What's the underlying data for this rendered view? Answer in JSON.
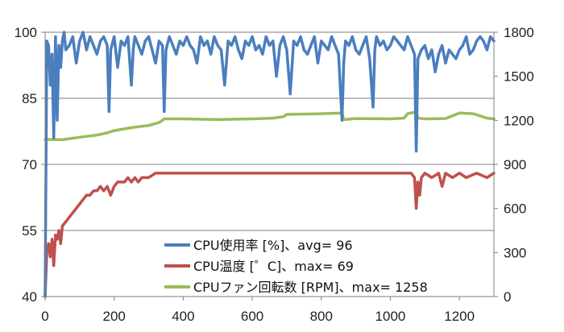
{
  "colors": {
    "cpu_usage": "#4a7ebf",
    "cpu_temp": "#c0504d",
    "fan_rpm": "#9bbb59",
    "grid": "#7f7f7f",
    "axis": "#7f7f7f"
  },
  "chart_data": {
    "type": "line",
    "title": "",
    "xlabel": "",
    "ylabel": "",
    "y2label": "",
    "xlim": [
      0,
      1300
    ],
    "ylim": [
      40,
      100
    ],
    "y2lim": [
      0,
      1800
    ],
    "x_ticks": [
      "0",
      "200",
      "400",
      "600",
      "800",
      "1000",
      "1200"
    ],
    "y_ticks": [
      "40",
      "55",
      "70",
      "85",
      "100"
    ],
    "y2_ticks": [
      "0",
      "300",
      "600",
      "900",
      "1200",
      "1500",
      "1800"
    ],
    "grid": "horizontal",
    "legend_position": "bottom-center",
    "series": [
      {
        "name": "CPU使用率 [%]、avg= 96",
        "axis": "left",
        "x": [
          0,
          5,
          10,
          15,
          20,
          25,
          30,
          35,
          40,
          45,
          50,
          55,
          60,
          70,
          80,
          90,
          100,
          110,
          120,
          130,
          140,
          150,
          160,
          170,
          180,
          185,
          190,
          200,
          210,
          220,
          230,
          240,
          250,
          255,
          260,
          270,
          280,
          290,
          300,
          310,
          320,
          330,
          340,
          345,
          350,
          360,
          370,
          380,
          390,
          400,
          410,
          420,
          430,
          440,
          450,
          460,
          470,
          480,
          490,
          500,
          510,
          520,
          530,
          540,
          550,
          560,
          570,
          580,
          590,
          600,
          610,
          620,
          630,
          640,
          650,
          660,
          670,
          680,
          690,
          700,
          710,
          720,
          730,
          740,
          750,
          760,
          770,
          780,
          790,
          800,
          810,
          820,
          830,
          840,
          850,
          860,
          865,
          870,
          880,
          890,
          900,
          910,
          920,
          930,
          940,
          950,
          955,
          960,
          970,
          980,
          990,
          1000,
          1010,
          1020,
          1030,
          1040,
          1050,
          1060,
          1070,
          1075,
          1080,
          1090,
          1100,
          1110,
          1120,
          1130,
          1140,
          1150,
          1160,
          1170,
          1180,
          1190,
          1200,
          1210,
          1220,
          1230,
          1240,
          1250,
          1260,
          1270,
          1280,
          1290,
          1300
        ],
        "y": [
          40,
          98,
          97,
          88,
          95,
          76,
          99,
          80,
          97,
          92,
          98,
          100,
          96,
          97,
          99,
          93,
          98,
          100,
          96,
          99,
          97,
          95,
          98,
          99,
          97,
          82,
          96,
          99,
          92,
          98,
          97,
          99,
          88,
          96,
          99,
          97,
          95,
          98,
          99,
          96,
          93,
          98,
          97,
          82,
          96,
          99,
          97,
          95,
          98,
          97,
          99,
          97,
          96,
          93,
          99,
          97,
          98,
          95,
          99,
          97,
          96,
          88,
          98,
          97,
          99,
          96,
          94,
          98,
          97,
          99,
          96,
          97,
          95,
          99,
          97,
          98,
          90,
          97,
          99,
          96,
          86,
          98,
          97,
          99,
          96,
          95,
          97,
          99,
          93,
          98,
          97,
          96,
          99,
          97,
          95,
          80,
          93,
          98,
          97,
          99,
          96,
          95,
          97,
          99,
          94,
          83,
          96,
          99,
          97,
          98,
          96,
          97,
          99,
          98,
          97,
          96,
          99,
          97,
          95,
          73,
          94,
          96,
          97,
          94,
          96,
          91,
          95,
          97,
          93,
          96,
          95,
          94,
          96,
          97,
          99,
          95,
          96,
          98,
          99,
          98,
          96,
          99,
          98
        ]
      },
      {
        "name": "CPU温度 [゜C]、max= 69",
        "axis": "left",
        "x": [
          0,
          5,
          10,
          15,
          20,
          25,
          30,
          35,
          40,
          45,
          50,
          60,
          70,
          80,
          90,
          100,
          110,
          120,
          130,
          140,
          150,
          160,
          170,
          180,
          190,
          200,
          210,
          220,
          230,
          240,
          250,
          260,
          270,
          280,
          290,
          300,
          320,
          340,
          360,
          380,
          400,
          450,
          500,
          550,
          600,
          650,
          700,
          750,
          800,
          850,
          900,
          950,
          1000,
          1050,
          1060,
          1070,
          1075,
          1080,
          1085,
          1090,
          1100,
          1120,
          1140,
          1150,
          1160,
          1180,
          1200,
          1220,
          1250,
          1280,
          1300
        ],
        "y": [
          40,
          50,
          52,
          49,
          53,
          47,
          54,
          53,
          55,
          52,
          56,
          57,
          58,
          59,
          60,
          61,
          62,
          63,
          63,
          64,
          64,
          65,
          64,
          65,
          63,
          65,
          66,
          66,
          66,
          67,
          66,
          67,
          66,
          67,
          67,
          67,
          68,
          68,
          68,
          68,
          68,
          68,
          68,
          68,
          68,
          68,
          68,
          68,
          68,
          68,
          68,
          68,
          68,
          68,
          68,
          67,
          60,
          66,
          63,
          67,
          68,
          67,
          68,
          65,
          68,
          67,
          68,
          67,
          68,
          67,
          68
        ]
      },
      {
        "name": "CPUファン回転数 [RPM]、max= 1258",
        "axis": "right",
        "x": [
          0,
          50,
          100,
          150,
          180,
          200,
          250,
          300,
          330,
          340,
          345,
          400,
          500,
          600,
          660,
          690,
          700,
          800,
          860,
          865,
          900,
          1000,
          1040,
          1050,
          1060,
          1075,
          1080,
          1100,
          1160,
          1200,
          1240,
          1280,
          1300
        ],
        "y": [
          1070,
          1068,
          1085,
          1100,
          1115,
          1130,
          1150,
          1165,
          1185,
          1200,
          1210,
          1210,
          1205,
          1210,
          1215,
          1225,
          1240,
          1245,
          1250,
          1205,
          1212,
          1210,
          1215,
          1245,
          1250,
          1258,
          1215,
          1210,
          1212,
          1250,
          1245,
          1215,
          1210
        ]
      }
    ]
  }
}
